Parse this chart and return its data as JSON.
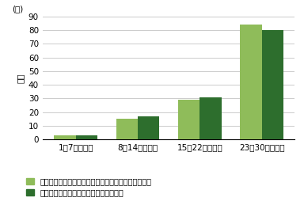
{
  "categories": [
    "1～7日間実施",
    "8～14日間実施",
    "15～22日間実施",
    "23～30日間実施"
  ],
  "series1_values": [
    3,
    15,
    29,
    84
  ],
  "series2_values": [
    3,
    17,
    31,
    80
  ],
  "series1_color": "#8fbc5a",
  "series2_color": "#2d6e2d",
  "series1_label": "意識してよく嘱むようになったと感じた保護者の人数",
  "series2_label": "嘱む力が上がったと感じた保護者の人数",
  "ylabel": "人数",
  "ylabel_top": "(人)",
  "ylim": [
    0,
    90
  ],
  "yticks": [
    0,
    10,
    20,
    30,
    40,
    50,
    60,
    70,
    80,
    90
  ],
  "bar_width": 0.35,
  "background_color": "#ffffff",
  "grid_color": "#cccccc",
  "axis_fontsize": 7.5,
  "legend_fontsize": 7.0
}
